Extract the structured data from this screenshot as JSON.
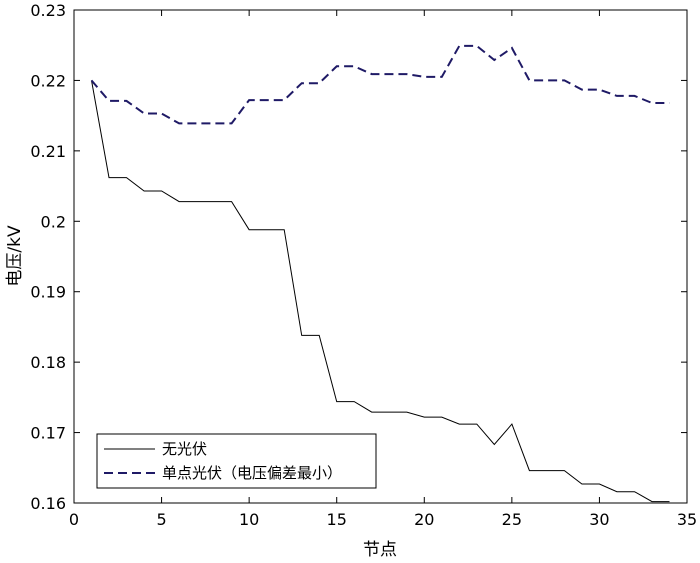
{
  "chart_data": {
    "type": "line",
    "title": "",
    "xlabel": "节点",
    "ylabel": "电压/kV",
    "xlim": [
      0,
      35
    ],
    "ylim": [
      0.16,
      0.23
    ],
    "xticks": [
      0,
      5,
      10,
      15,
      20,
      25,
      30,
      35
    ],
    "yticks": [
      0.16,
      0.17,
      0.18,
      0.19,
      0.2,
      0.21,
      0.22,
      0.23
    ],
    "xtick_labels": [
      "0",
      "5",
      "10",
      "15",
      "20",
      "25",
      "30",
      "35"
    ],
    "ytick_labels": [
      "0.16",
      "0.17",
      "0.18",
      "0.19",
      "0.2",
      "0.21",
      "0.22",
      "0.23"
    ],
    "grid": false,
    "legend_position": "bottom-left",
    "series": [
      {
        "name": "无光伏",
        "color": "#000000",
        "style": "solid",
        "x": [
          1,
          2,
          3,
          4,
          5,
          6,
          7,
          8,
          9,
          10,
          11,
          12,
          13,
          14,
          15,
          16,
          17,
          18,
          19,
          20,
          21,
          22,
          23,
          24,
          25,
          26,
          27,
          28,
          29,
          30,
          31,
          32,
          33,
          34
        ],
        "values": [
          0.22,
          0.2062,
          0.2062,
          0.2043,
          0.2043,
          0.2028,
          0.2028,
          0.2028,
          0.2028,
          0.1988,
          0.1988,
          0.1988,
          0.1838,
          0.1838,
          0.1744,
          0.1744,
          0.1729,
          0.1729,
          0.1729,
          0.1722,
          0.1722,
          0.1712,
          0.1712,
          0.1683,
          0.1712,
          0.1646,
          0.1646,
          0.1646,
          0.1627,
          0.1627,
          0.1616,
          0.1616,
          0.1602,
          0.1602
        ]
      },
      {
        "name": "单点光伏（电压偏差最小）",
        "color": "#1f1a66",
        "style": "dashed",
        "x": [
          1,
          2,
          3,
          4,
          5,
          6,
          7,
          8,
          9,
          10,
          11,
          12,
          13,
          14,
          15,
          16,
          17,
          18,
          19,
          20,
          21,
          22,
          23,
          24,
          25,
          26,
          27,
          28,
          29,
          30,
          31,
          32,
          33,
          34
        ],
        "values": [
          0.22,
          0.2171,
          0.2171,
          0.2153,
          0.2153,
          0.2139,
          0.2139,
          0.2139,
          0.2139,
          0.2172,
          0.2172,
          0.2172,
          0.2196,
          0.2196,
          0.222,
          0.222,
          0.2209,
          0.2209,
          0.2209,
          0.2205,
          0.2205,
          0.2249,
          0.2249,
          0.2229,
          0.2246,
          0.22,
          0.22,
          0.22,
          0.2187,
          0.2187,
          0.2178,
          0.2178,
          0.2168,
          0.2168
        ]
      }
    ]
  }
}
